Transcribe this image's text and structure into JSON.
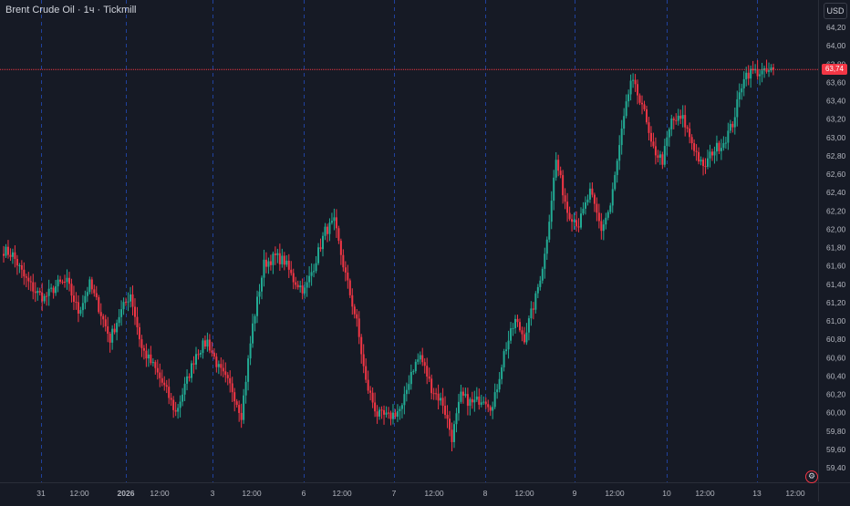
{
  "header": {
    "title": "Brent Crude Oil · 1ч · Tickmill"
  },
  "toolbar": {
    "currency": "USD"
  },
  "last_price": {
    "label": "63,74",
    "value": 63.74
  },
  "colors": {
    "up": "#22ab94",
    "down": "#f23645",
    "background": "#161a25",
    "separator": "#2962ff",
    "text": "#b2b5be"
  },
  "icons": {
    "settings": "gear-icon"
  },
  "chart_data": {
    "type": "candlestick",
    "title": "Brent Crude Oil · 1ч · Tickmill",
    "ylim": [
      59.3,
      64.4
    ],
    "y_ticks": [
      {
        "value": 64.2,
        "label": "64,20"
      },
      {
        "value": 64.0,
        "label": "64,00"
      },
      {
        "value": 63.8,
        "label": "63,80"
      },
      {
        "value": 63.6,
        "label": "63,60"
      },
      {
        "value": 63.4,
        "label": "63,40"
      },
      {
        "value": 63.2,
        "label": "63,20"
      },
      {
        "value": 63.0,
        "label": "63,00"
      },
      {
        "value": 62.8,
        "label": "62,80"
      },
      {
        "value": 62.6,
        "label": "62,60"
      },
      {
        "value": 62.4,
        "label": "62,40"
      },
      {
        "value": 62.2,
        "label": "62,20"
      },
      {
        "value": 62.0,
        "label": "62,00"
      },
      {
        "value": 61.8,
        "label": "61,80"
      },
      {
        "value": 61.6,
        "label": "61,60"
      },
      {
        "value": 61.4,
        "label": "61,40"
      },
      {
        "value": 61.2,
        "label": "61,20"
      },
      {
        "value": 61.0,
        "label": "61,00"
      },
      {
        "value": 60.8,
        "label": "60,80"
      },
      {
        "value": 60.6,
        "label": "60,60"
      },
      {
        "value": 60.4,
        "label": "60,40"
      },
      {
        "value": 60.2,
        "label": "60,20"
      },
      {
        "value": 60.0,
        "label": "60,00"
      },
      {
        "value": 59.8,
        "label": "59,80"
      },
      {
        "value": 59.6,
        "label": "59,60"
      },
      {
        "value": 59.4,
        "label": "59,40"
      }
    ],
    "x_ticks": [
      {
        "index": 0,
        "label": "31",
        "day": true
      },
      {
        "index": 1,
        "label": "12:00",
        "day": false
      },
      {
        "index": 2,
        "label": "2026",
        "day": true
      },
      {
        "index": 3,
        "label": "12:00",
        "day": false
      },
      {
        "index": 4,
        "label": "3",
        "day": true
      },
      {
        "index": 5,
        "label": "12:00",
        "day": false
      },
      {
        "index": 6,
        "label": "6",
        "day": true
      },
      {
        "index": 7,
        "label": "12:00",
        "day": false
      },
      {
        "index": 8,
        "label": "7",
        "day": true
      },
      {
        "index": 9,
        "label": "12:00",
        "day": false
      },
      {
        "index": 10,
        "label": "8",
        "day": true
      },
      {
        "index": 11,
        "label": "12:00",
        "day": false
      },
      {
        "index": 12,
        "label": "9",
        "day": true
      },
      {
        "index": 13,
        "label": "12:00",
        "day": false
      },
      {
        "index": 14,
        "label": "10",
        "day": true
      },
      {
        "index": 15,
        "label": "12:00",
        "day": false
      },
      {
        "index": 16,
        "label": "13",
        "day": true
      },
      {
        "index": 17,
        "label": "12:00",
        "day": false
      }
    ],
    "last_value": 63.74,
    "anchors": [
      [
        0,
        61.77
      ],
      [
        4,
        61.72
      ],
      [
        9,
        61.48
      ],
      [
        14,
        61.32
      ],
      [
        18,
        61.25
      ],
      [
        24,
        61.4
      ],
      [
        28,
        61.42
      ],
      [
        33,
        61.1
      ],
      [
        38,
        61.4
      ],
      [
        42,
        61.15
      ],
      [
        47,
        60.8
      ],
      [
        51,
        61.06
      ],
      [
        56,
        61.3
      ],
      [
        61,
        60.7
      ],
      [
        67,
        60.47
      ],
      [
        72,
        60.23
      ],
      [
        76,
        60.0
      ],
      [
        81,
        60.35
      ],
      [
        85,
        60.65
      ],
      [
        90,
        60.78
      ],
      [
        95,
        60.48
      ],
      [
        101,
        60.25
      ],
      [
        105,
        59.98
      ],
      [
        110,
        60.95
      ],
      [
        115,
        61.62
      ],
      [
        120,
        61.7
      ],
      [
        124,
        61.65
      ],
      [
        128,
        61.45
      ],
      [
        133,
        61.33
      ],
      [
        137,
        61.6
      ],
      [
        142,
        61.98
      ],
      [
        146,
        62.07
      ],
      [
        151,
        61.5
      ],
      [
        156,
        60.98
      ],
      [
        160,
        60.33
      ],
      [
        165,
        59.98
      ],
      [
        170,
        59.95
      ],
      [
        176,
        60.05
      ],
      [
        180,
        60.45
      ],
      [
        184,
        60.62
      ],
      [
        189,
        60.27
      ],
      [
        194,
        60.1
      ],
      [
        198,
        59.73
      ],
      [
        202,
        60.18
      ],
      [
        207,
        60.1
      ],
      [
        212,
        60.17
      ],
      [
        216,
        60.05
      ],
      [
        221,
        60.65
      ],
      [
        226,
        61.0
      ],
      [
        230,
        60.82
      ],
      [
        235,
        61.25
      ],
      [
        239,
        61.72
      ],
      [
        244,
        62.75
      ],
      [
        249,
        62.2
      ],
      [
        254,
        62.05
      ],
      [
        259,
        62.4
      ],
      [
        264,
        62.0
      ],
      [
        268,
        62.25
      ],
      [
        273,
        63.05
      ],
      [
        277,
        63.62
      ],
      [
        282,
        63.38
      ],
      [
        286,
        62.9
      ],
      [
        291,
        62.75
      ],
      [
        295,
        63.18
      ],
      [
        300,
        63.2
      ],
      [
        304,
        62.95
      ],
      [
        309,
        62.65
      ],
      [
        313,
        62.85
      ],
      [
        318,
        62.95
      ],
      [
        322,
        63.15
      ],
      [
        327,
        63.68
      ],
      [
        331,
        63.72
      ],
      [
        336,
        63.7
      ],
      [
        340,
        63.74
      ]
    ]
  }
}
